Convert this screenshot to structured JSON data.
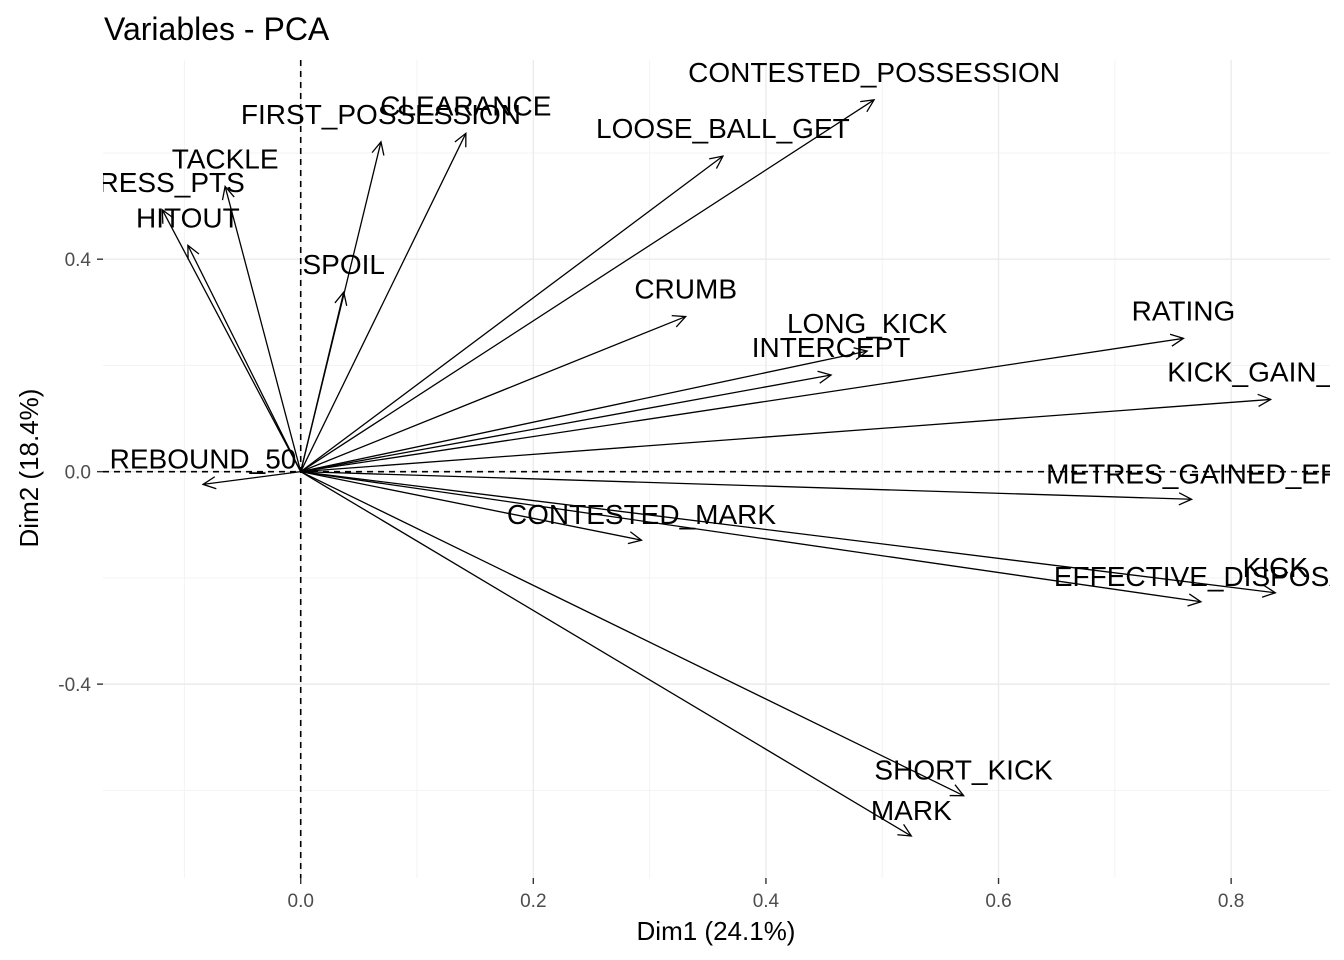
{
  "chart_data": {
    "type": "scatter",
    "title": "Variables - PCA",
    "xlabel": "Dim1 (24.1%)",
    "ylabel": "Dim2 (18.4%)",
    "xlim": [
      -0.17,
      0.885
    ],
    "ylim": [
      -0.765,
      0.775
    ],
    "x_ticks": [
      0.0,
      0.2,
      0.4,
      0.6,
      0.8
    ],
    "x_tick_labels": [
      "0.0",
      "0.2",
      "0.4",
      "0.6",
      "0.8"
    ],
    "y_ticks": [
      -0.4,
      0.0,
      0.4
    ],
    "y_tick_labels": [
      "-0.4",
      "0.0",
      "0.4"
    ],
    "grid": true,
    "reference_lines": {
      "x": 0,
      "y": 0
    },
    "variables": [
      {
        "name": "CONTESTED_POSSESSION",
        "x": 0.493,
        "y": 0.7
      },
      {
        "name": "CLEARANCE",
        "x": 0.142,
        "y": 0.637
      },
      {
        "name": "FIRST_POSSESSION",
        "x": 0.069,
        "y": 0.621
      },
      {
        "name": "LOOSE_BALL_GET",
        "x": 0.363,
        "y": 0.594
      },
      {
        "name": "TACKLE",
        "x": -0.065,
        "y": 0.537
      },
      {
        "name": "PRESS_PTS",
        "x": -0.119,
        "y": 0.493
      },
      {
        "name": "HITOUT",
        "x": -0.097,
        "y": 0.426
      },
      {
        "name": "SPOIL",
        "x": 0.037,
        "y": 0.338
      },
      {
        "name": "CRUMB",
        "x": 0.331,
        "y": 0.292
      },
      {
        "name": "RATING",
        "x": 0.759,
        "y": 0.251
      },
      {
        "name": "LONG_KICK",
        "x": 0.487,
        "y": 0.227
      },
      {
        "name": "INTERCEPT",
        "x": 0.456,
        "y": 0.182
      },
      {
        "name": "KICK_GAIN_ME",
        "x": 0.834,
        "y": 0.136
      },
      {
        "name": "REBOUND_50",
        "x": -0.084,
        "y": -0.024
      },
      {
        "name": "METRES_GAINED_EF",
        "x": 0.766,
        "y": -0.052
      },
      {
        "name": "CONTESTED_MARK",
        "x": 0.293,
        "y": -0.129
      },
      {
        "name": "KICK",
        "x": 0.838,
        "y": -0.228
      },
      {
        "name": "EFFECTIVE_DISPOSA",
        "x": 0.774,
        "y": -0.245
      },
      {
        "name": "SHORT_KICK",
        "x": 0.57,
        "y": -0.61
      },
      {
        "name": "MARK",
        "x": 0.525,
        "y": -0.686
      }
    ]
  }
}
